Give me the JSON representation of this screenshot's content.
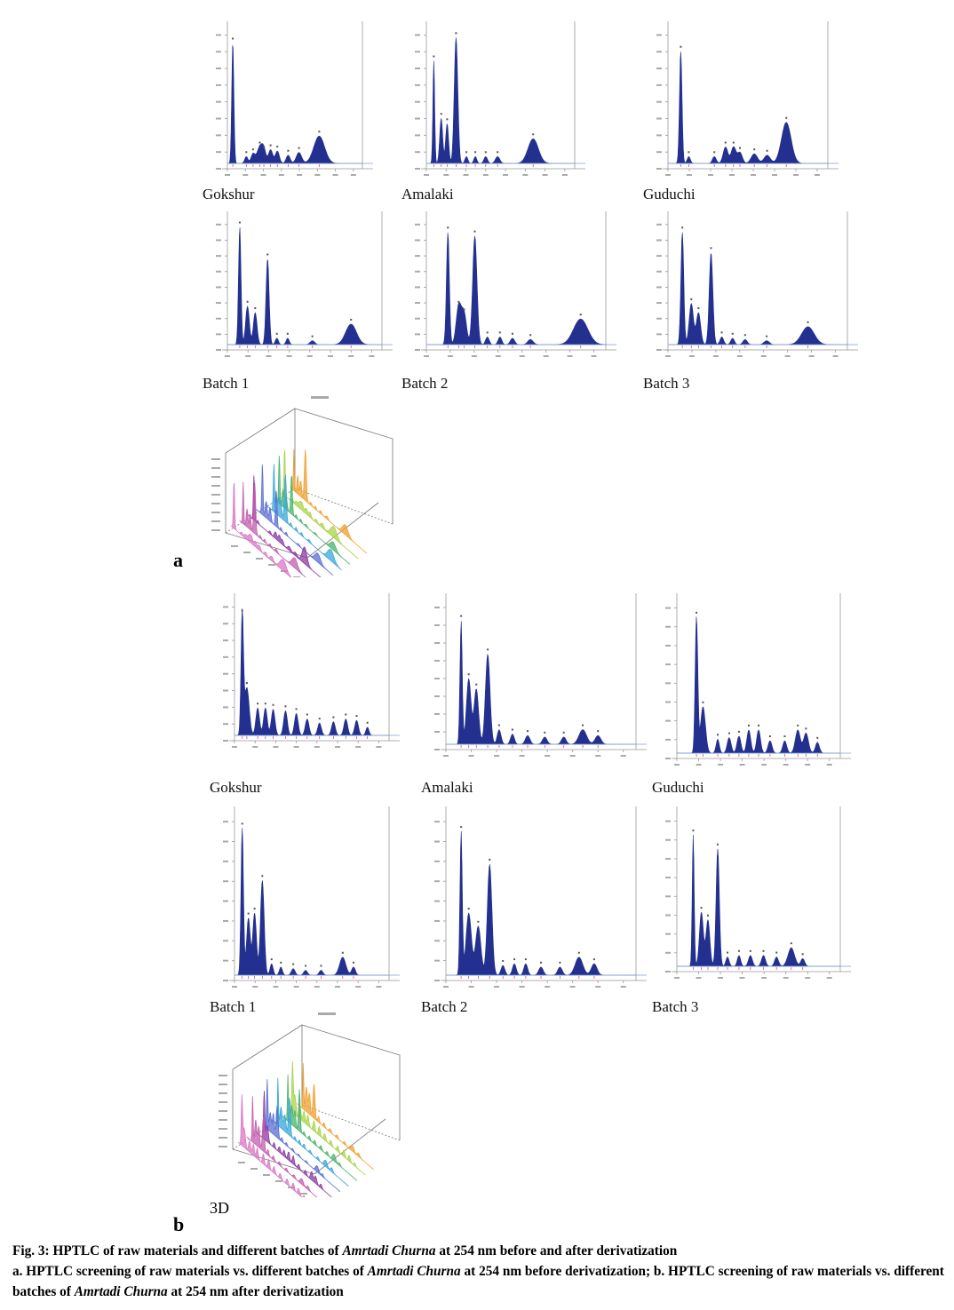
{
  "section_a": {
    "letter": "a",
    "panels": [
      {
        "label": "Gokshur",
        "peaks": [
          [
            0.04,
            0.88,
            0.008
          ],
          [
            0.14,
            0.05,
            0.012
          ],
          [
            0.19,
            0.07,
            0.015
          ],
          [
            0.24,
            0.12,
            0.02
          ],
          [
            0.27,
            0.09,
            0.015
          ],
          [
            0.32,
            0.1,
            0.016
          ],
          [
            0.37,
            0.09,
            0.015
          ],
          [
            0.45,
            0.06,
            0.015
          ],
          [
            0.53,
            0.08,
            0.02
          ],
          [
            0.68,
            0.2,
            0.04
          ]
        ]
      },
      {
        "label": "Amalaki",
        "peaks": [
          [
            0.05,
            0.75,
            0.006
          ],
          [
            0.1,
            0.33,
            0.01
          ],
          [
            0.14,
            0.29,
            0.01
          ],
          [
            0.2,
            0.92,
            0.012
          ],
          [
            0.27,
            0.05,
            0.01
          ],
          [
            0.33,
            0.05,
            0.01
          ],
          [
            0.4,
            0.05,
            0.012
          ],
          [
            0.48,
            0.05,
            0.015
          ],
          [
            0.72,
            0.18,
            0.035
          ]
        ]
      },
      {
        "label": "Guduchi",
        "peaks": [
          [
            0.08,
            0.82,
            0.008
          ],
          [
            0.13,
            0.05,
            0.01
          ],
          [
            0.29,
            0.05,
            0.012
          ],
          [
            0.36,
            0.12,
            0.015
          ],
          [
            0.41,
            0.12,
            0.015
          ],
          [
            0.45,
            0.08,
            0.015
          ],
          [
            0.54,
            0.07,
            0.02
          ],
          [
            0.62,
            0.06,
            0.02
          ],
          [
            0.74,
            0.3,
            0.03
          ]
        ]
      },
      {
        "label": "Batch 1",
        "peaks": [
          [
            0.08,
            0.92,
            0.008
          ],
          [
            0.13,
            0.3,
            0.012
          ],
          [
            0.18,
            0.25,
            0.012
          ],
          [
            0.26,
            0.67,
            0.01
          ],
          [
            0.32,
            0.05,
            0.01
          ],
          [
            0.39,
            0.05,
            0.01
          ],
          [
            0.55,
            0.03,
            0.015
          ],
          [
            0.8,
            0.16,
            0.035
          ]
        ]
      },
      {
        "label": "Batch 2",
        "peaks": [
          [
            0.12,
            0.88,
            0.008
          ],
          [
            0.18,
            0.3,
            0.014
          ],
          [
            0.21,
            0.24,
            0.014
          ],
          [
            0.27,
            0.85,
            0.012
          ],
          [
            0.34,
            0.06,
            0.01
          ],
          [
            0.41,
            0.06,
            0.01
          ],
          [
            0.48,
            0.05,
            0.012
          ],
          [
            0.58,
            0.04,
            0.015
          ],
          [
            0.86,
            0.2,
            0.04
          ]
        ]
      },
      {
        "label": "Batch 3",
        "peaks": [
          [
            0.08,
            0.88,
            0.008
          ],
          [
            0.13,
            0.32,
            0.012
          ],
          [
            0.17,
            0.25,
            0.012
          ],
          [
            0.24,
            0.72,
            0.01
          ],
          [
            0.3,
            0.06,
            0.01
          ],
          [
            0.36,
            0.05,
            0.01
          ],
          [
            0.43,
            0.04,
            0.012
          ],
          [
            0.55,
            0.03,
            0.015
          ],
          [
            0.78,
            0.14,
            0.035
          ]
        ]
      }
    ]
  },
  "section_b": {
    "letter": "b",
    "threed_label": "3D",
    "panels": [
      {
        "label": "Gokshur",
        "peaks": [
          [
            0.05,
            0.88,
            0.008
          ],
          [
            0.08,
            0.35,
            0.015
          ],
          [
            0.15,
            0.2,
            0.012
          ],
          [
            0.2,
            0.2,
            0.012
          ],
          [
            0.25,
            0.19,
            0.012
          ],
          [
            0.33,
            0.18,
            0.012
          ],
          [
            0.4,
            0.16,
            0.012
          ],
          [
            0.47,
            0.12,
            0.012
          ],
          [
            0.55,
            0.09,
            0.012
          ],
          [
            0.64,
            0.1,
            0.012
          ],
          [
            0.72,
            0.12,
            0.012
          ],
          [
            0.79,
            0.11,
            0.012
          ],
          [
            0.86,
            0.06,
            0.01
          ]
        ]
      },
      {
        "label": "Amalaki",
        "peaks": [
          [
            0.08,
            0.85,
            0.006
          ],
          [
            0.12,
            0.45,
            0.012
          ],
          [
            0.16,
            0.38,
            0.012
          ],
          [
            0.22,
            0.62,
            0.012
          ],
          [
            0.28,
            0.1,
            0.01
          ],
          [
            0.35,
            0.07,
            0.01
          ],
          [
            0.43,
            0.06,
            0.012
          ],
          [
            0.52,
            0.05,
            0.012
          ],
          [
            0.62,
            0.05,
            0.012
          ],
          [
            0.72,
            0.1,
            0.02
          ],
          [
            0.8,
            0.06,
            0.015
          ]
        ]
      },
      {
        "label": "Guduchi",
        "peaks": [
          [
            0.12,
            0.88,
            0.008
          ],
          [
            0.16,
            0.3,
            0.015
          ],
          [
            0.25,
            0.09,
            0.01
          ],
          [
            0.32,
            0.1,
            0.012
          ],
          [
            0.38,
            0.11,
            0.012
          ],
          [
            0.44,
            0.15,
            0.012
          ],
          [
            0.5,
            0.15,
            0.012
          ],
          [
            0.57,
            0.08,
            0.012
          ],
          [
            0.66,
            0.08,
            0.012
          ],
          [
            0.74,
            0.15,
            0.015
          ],
          [
            0.79,
            0.13,
            0.015
          ],
          [
            0.86,
            0.07,
            0.012
          ]
        ]
      },
      {
        "label": "Batch 1",
        "peaks": [
          [
            0.05,
            0.9,
            0.008
          ],
          [
            0.09,
            0.35,
            0.012
          ],
          [
            0.13,
            0.38,
            0.012
          ],
          [
            0.18,
            0.58,
            0.012
          ],
          [
            0.24,
            0.07,
            0.01
          ],
          [
            0.3,
            0.05,
            0.01
          ],
          [
            0.38,
            0.04,
            0.012
          ],
          [
            0.46,
            0.03,
            0.012
          ],
          [
            0.56,
            0.03,
            0.012
          ],
          [
            0.7,
            0.11,
            0.02
          ],
          [
            0.77,
            0.05,
            0.012
          ]
        ]
      },
      {
        "label": "Batch 2",
        "peaks": [
          [
            0.08,
            0.88,
            0.006
          ],
          [
            0.12,
            0.38,
            0.014
          ],
          [
            0.17,
            0.3,
            0.014
          ],
          [
            0.23,
            0.68,
            0.012
          ],
          [
            0.3,
            0.06,
            0.01
          ],
          [
            0.36,
            0.07,
            0.01
          ],
          [
            0.42,
            0.07,
            0.01
          ],
          [
            0.5,
            0.05,
            0.012
          ],
          [
            0.6,
            0.05,
            0.012
          ],
          [
            0.7,
            0.11,
            0.02
          ],
          [
            0.78,
            0.07,
            0.015
          ]
        ]
      },
      {
        "label": "Batch 3",
        "peaks": [
          [
            0.1,
            0.85,
            0.006
          ],
          [
            0.15,
            0.35,
            0.012
          ],
          [
            0.19,
            0.3,
            0.012
          ],
          [
            0.25,
            0.76,
            0.01
          ],
          [
            0.31,
            0.06,
            0.01
          ],
          [
            0.38,
            0.07,
            0.01
          ],
          [
            0.45,
            0.07,
            0.012
          ],
          [
            0.53,
            0.07,
            0.012
          ],
          [
            0.61,
            0.06,
            0.012
          ],
          [
            0.7,
            0.12,
            0.02
          ],
          [
            0.77,
            0.05,
            0.012
          ]
        ]
      }
    ]
  },
  "stack_colors": [
    "#d977c6",
    "#c25db0",
    "#8a3aa0",
    "#5a6dd4",
    "#39a7d8",
    "#48b36c",
    "#a8d44a",
    "#f0a030"
  ],
  "curve_color": "#23308f",
  "caption": {
    "line1_pre": "Fig. 3: HPTLC of raw materials and different batches of ",
    "line1_em": "Amrtadi Churna",
    "line1_post": " at 254 nm before and after derivatization",
    "line2_pre": "a. HPTLC screening of raw materials vs. different batches of ",
    "line2_em": "Amrtadi Churna",
    "line2_mid": " at 254 nm before derivatization; b. HPTLC screening of raw materials vs. different batches of ",
    "line2_em2": "Amrtadi Churna",
    "line2_post": " at 254 nm after derivatization"
  }
}
